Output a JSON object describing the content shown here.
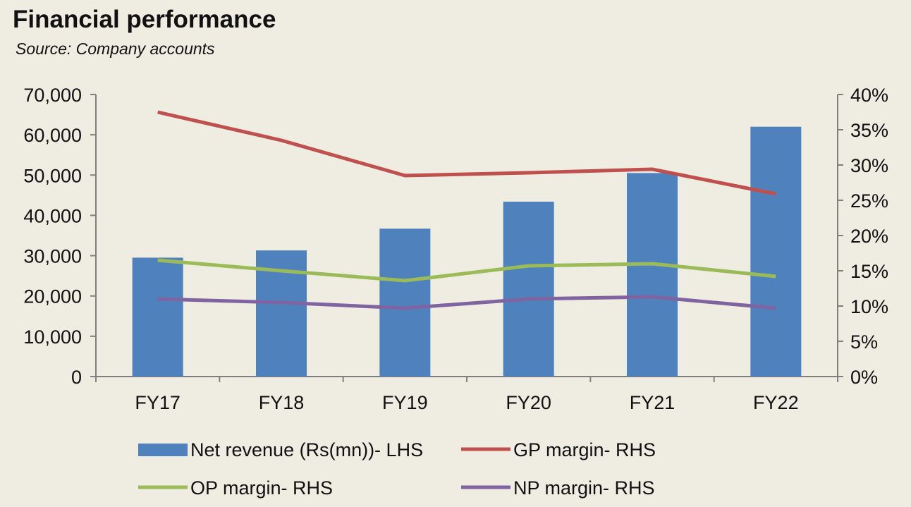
{
  "title": "Financial performance",
  "subtitle": "Source: Company accounts",
  "chart_data": {
    "type": "bar",
    "categories": [
      "FY17",
      "FY18",
      "FY19",
      "FY20",
      "FY21",
      "FY22"
    ],
    "series": [
      {
        "name": "Net revenue (Rs(mn))- LHS",
        "type": "bar",
        "axis": "left",
        "color": "#4f81bd",
        "values": [
          29500,
          31300,
          36700,
          43400,
          50500,
          62000
        ]
      },
      {
        "name": "GP margin- RHS",
        "type": "line",
        "axis": "right",
        "color": "#c0504d",
        "values": [
          37.5,
          33.5,
          28.5,
          28.9,
          29.4,
          25.9
        ]
      },
      {
        "name": "OP margin- RHS",
        "type": "line",
        "axis": "right",
        "color": "#9bbb59",
        "values": [
          16.5,
          15.0,
          13.6,
          15.7,
          16.0,
          14.2
        ]
      },
      {
        "name": "NP margin- RHS",
        "type": "line",
        "axis": "right",
        "color": "#8064a2",
        "values": [
          11.0,
          10.5,
          9.7,
          11.0,
          11.3,
          9.7
        ]
      }
    ],
    "y_left": {
      "ylim": [
        0,
        70000
      ],
      "ticks": [
        0,
        10000,
        20000,
        30000,
        40000,
        50000,
        60000,
        70000
      ],
      "tick_labels": [
        "0",
        "10,000",
        "20,000",
        "30,000",
        "40,000",
        "50,000",
        "60,000",
        "70,000"
      ]
    },
    "y_right": {
      "ylim": [
        0,
        40
      ],
      "ticks": [
        0,
        5,
        10,
        15,
        20,
        25,
        30,
        35,
        40
      ],
      "tick_labels": [
        "0%",
        "5%",
        "10%",
        "15%",
        "20%",
        "25%",
        "30%",
        "35%",
        "40%"
      ]
    },
    "grid": false,
    "legend_position": "bottom",
    "axis_color": "#7f7f7f"
  }
}
